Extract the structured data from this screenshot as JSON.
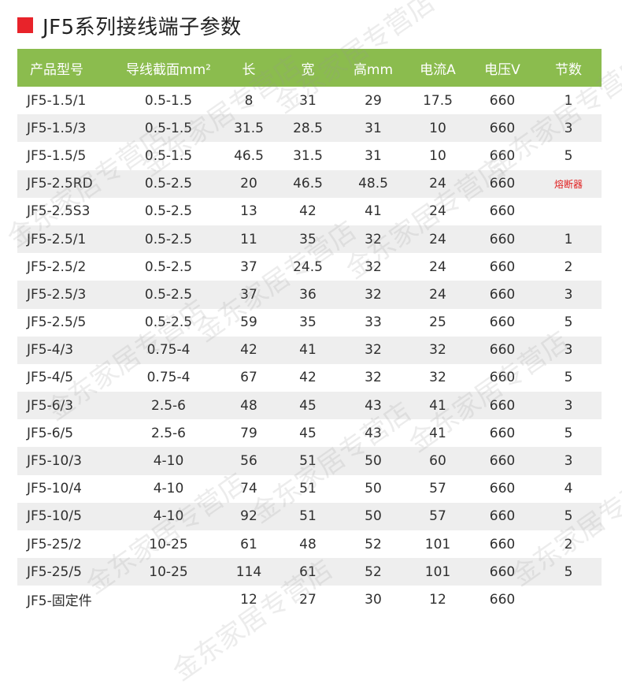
{
  "title": "JF5系列接线端子参数",
  "colors": {
    "accent_red": "#e8232a",
    "header_green": "#8bbc4e",
    "stripe": "#eeeeee"
  },
  "watermark": "金东家居专营店",
  "headers": [
    "产品型号",
    "导线截面mm²",
    "长",
    "宽",
    "高mm",
    "电流A",
    "电压V",
    "节数"
  ],
  "rows": [
    [
      "JF5-1.5/1",
      "0.5-1.5",
      "8",
      "31",
      "29",
      "17.5",
      "660",
      "1"
    ],
    [
      "JF5-1.5/3",
      "0.5-1.5",
      "31.5",
      "28.5",
      "31",
      "10",
      "660",
      "3"
    ],
    [
      "JF5-1.5/5",
      "0.5-1.5",
      "46.5",
      "31.5",
      "31",
      "10",
      "660",
      "5"
    ],
    [
      "JF5-2.5RD",
      "0.5-2.5",
      "20",
      "46.5",
      "48.5",
      "24",
      "660",
      "熔断器"
    ],
    [
      "JF5-2.5S3",
      "0.5-2.5",
      "13",
      "42",
      "41",
      "24",
      "660",
      ""
    ],
    [
      "JF5-2.5/1",
      "0.5-2.5",
      "11",
      "35",
      "32",
      "24",
      "660",
      "1"
    ],
    [
      "JF5-2.5/2",
      "0.5-2.5",
      "37",
      "24.5",
      "32",
      "24",
      "660",
      "2"
    ],
    [
      "JF5-2.5/3",
      "0.5-2.5",
      "37",
      "36",
      "32",
      "24",
      "660",
      "3"
    ],
    [
      "JF5-2.5/5",
      "0.5-2.5",
      "59",
      "35",
      "33",
      "25",
      "660",
      "5"
    ],
    [
      "JF5-4/3",
      "0.75-4",
      "42",
      "41",
      "32",
      "32",
      "660",
      "3"
    ],
    [
      "JF5-4/5",
      "0.75-4",
      "67",
      "42",
      "32",
      "32",
      "660",
      "5"
    ],
    [
      "JF5-6/3",
      "2.5-6",
      "48",
      "45",
      "43",
      "41",
      "660",
      "3"
    ],
    [
      "JF5-6/5",
      "2.5-6",
      "79",
      "45",
      "43",
      "41",
      "660",
      "5"
    ],
    [
      "JF5-10/3",
      "4-10",
      "56",
      "51",
      "50",
      "60",
      "660",
      "3"
    ],
    [
      "JF5-10/4",
      "4-10",
      "74",
      "51",
      "50",
      "57",
      "660",
      "4"
    ],
    [
      "JF5-10/5",
      "4-10",
      "92",
      "51",
      "50",
      "57",
      "660",
      "5"
    ],
    [
      "JF5-25/2",
      "10-25",
      "61",
      "48",
      "52",
      "101",
      "660",
      "2"
    ],
    [
      "JF5-25/5",
      "10-25",
      "114",
      "61",
      "52",
      "101",
      "660",
      "5"
    ],
    [
      "JF5-固定件",
      "",
      "12",
      "27",
      "30",
      "12",
      "660",
      ""
    ]
  ]
}
